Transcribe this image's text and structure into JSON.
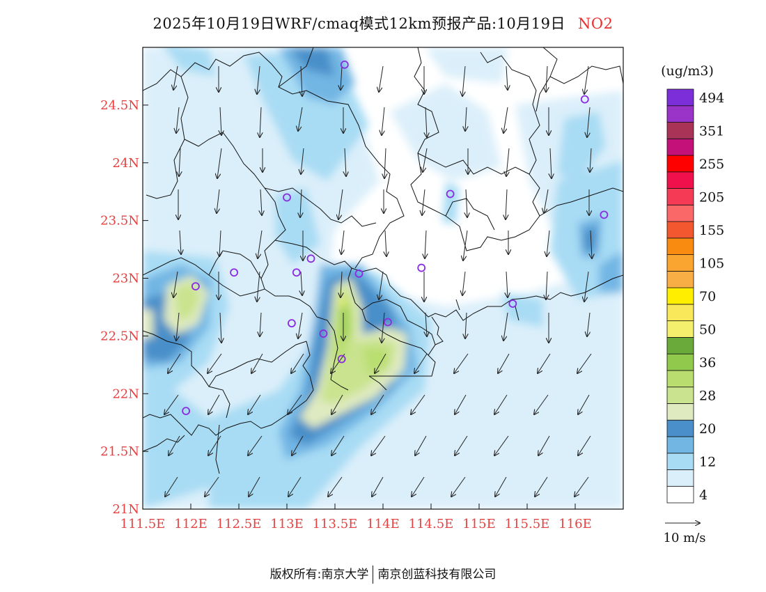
{
  "title": {
    "text": "2025年10月19日WRF/cmaq模式12km预报产品:10月19日",
    "species": "NO2"
  },
  "map": {
    "lon_range": [
      111.5,
      116.5
    ],
    "lat_range": [
      21.0,
      25.0
    ],
    "y_ticks": [
      {
        "lat": 24.5,
        "label": "24.5N"
      },
      {
        "lat": 24.0,
        "label": "24N"
      },
      {
        "lat": 23.5,
        "label": "23.5N"
      },
      {
        "lat": 23.0,
        "label": "23N"
      },
      {
        "lat": 22.5,
        "label": "22.5N"
      },
      {
        "lat": 22.0,
        "label": "22N"
      },
      {
        "lat": 21.5,
        "label": "21.5N"
      },
      {
        "lat": 21.0,
        "label": "21N"
      }
    ],
    "x_ticks": [
      {
        "lon": 111.5,
        "label": "111.5E"
      },
      {
        "lon": 112.0,
        "label": "112E"
      },
      {
        "lon": 112.5,
        "label": "112.5E"
      },
      {
        "lon": 113.0,
        "label": "113E"
      },
      {
        "lon": 113.5,
        "label": "113.5E"
      },
      {
        "lon": 114.0,
        "label": "114E"
      },
      {
        "lon": 114.5,
        "label": "114.5E"
      },
      {
        "lon": 115.0,
        "label": "115E"
      },
      {
        "lon": 115.5,
        "label": "115.5E"
      },
      {
        "lon": 116.0,
        "label": "116E"
      }
    ],
    "stations": [
      {
        "lon": 113.6,
        "lat": 24.85
      },
      {
        "lon": 116.1,
        "lat": 24.55
      },
      {
        "lon": 113.0,
        "lat": 23.7
      },
      {
        "lon": 114.7,
        "lat": 23.73
      },
      {
        "lon": 116.3,
        "lat": 23.55
      },
      {
        "lon": 113.25,
        "lat": 23.17
      },
      {
        "lon": 113.1,
        "lat": 23.05
      },
      {
        "lon": 112.45,
        "lat": 23.05
      },
      {
        "lon": 113.75,
        "lat": 23.04
      },
      {
        "lon": 114.4,
        "lat": 23.09
      },
      {
        "lon": 112.05,
        "lat": 22.93
      },
      {
        "lon": 115.35,
        "lat": 22.78
      },
      {
        "lon": 113.05,
        "lat": 22.61
      },
      {
        "lon": 114.05,
        "lat": 22.62
      },
      {
        "lon": 113.38,
        "lat": 22.52
      },
      {
        "lon": 113.57,
        "lat": 22.3
      },
      {
        "lon": 111.95,
        "lat": 21.85
      }
    ]
  },
  "colorbar": {
    "unit": "(ug/m3)",
    "colors": [
      "#ffffff",
      "#dbeffa",
      "#a8dcf4",
      "#72b6e4",
      "#4a8fc9",
      "#dfeac0",
      "#c9e38e",
      "#b9de6f",
      "#90c94c",
      "#6aaa3a",
      "#f4ef6c",
      "#f8e85a",
      "#ffee00",
      "#f9ae45",
      "#f9a530",
      "#f98c10",
      "#f2572f",
      "#fa6868",
      "#f53a55",
      "#f0104c",
      "#ff0000",
      "#c4117a",
      "#a83357",
      "#9a33c8",
      "#7c2ed8"
    ],
    "labels": [
      {
        "after": 1,
        "text": "4"
      },
      {
        "after": 3,
        "text": "12"
      },
      {
        "after": 5,
        "text": "20"
      },
      {
        "after": 7,
        "text": "28"
      },
      {
        "after": 9,
        "text": "36"
      },
      {
        "after": 11,
        "text": "50"
      },
      {
        "after": 13,
        "text": "70"
      },
      {
        "after": 15,
        "text": "105"
      },
      {
        "after": 17,
        "text": "155"
      },
      {
        "after": 19,
        "text": "205"
      },
      {
        "after": 21,
        "text": "255"
      },
      {
        "after": 23,
        "text": "351"
      },
      {
        "after": 25,
        "text": "494"
      }
    ]
  },
  "wind_legend": {
    "label": "10 m/s"
  },
  "footer": {
    "left": "版权所有:南京大学",
    "right": "南京创蓝科技有限公司"
  }
}
